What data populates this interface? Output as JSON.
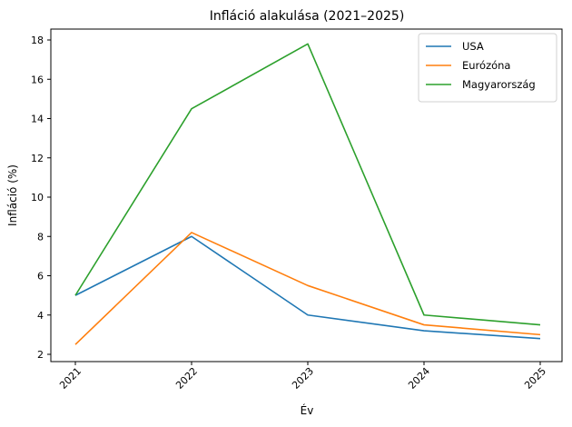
{
  "chart_data": {
    "type": "line",
    "title": "Infláció alakulása (2021–2025)",
    "xlabel": "Év",
    "ylabel": "Infláció (%)",
    "categories": [
      "2021",
      "2022",
      "2023",
      "2024",
      "2025"
    ],
    "x": [
      2021,
      2022,
      2023,
      2024,
      2025
    ],
    "series": [
      {
        "name": "USA",
        "color": "#1f77b4",
        "values": [
          5.0,
          8.0,
          4.0,
          3.2,
          2.8
        ]
      },
      {
        "name": "Eurózóna",
        "color": "#ff7f0e",
        "values": [
          2.5,
          8.2,
          5.5,
          3.5,
          3.0
        ]
      },
      {
        "name": "Magyarország",
        "color": "#2ca02c",
        "values": [
          5.0,
          14.5,
          17.8,
          4.0,
          3.5
        ]
      }
    ],
    "ylim": [
      1.7,
      18.6
    ],
    "yticks": [
      2,
      4,
      6,
      8,
      10,
      12,
      14,
      16,
      18
    ],
    "grid": false,
    "legend_position": "upper right",
    "xtick_rotation": 45
  }
}
